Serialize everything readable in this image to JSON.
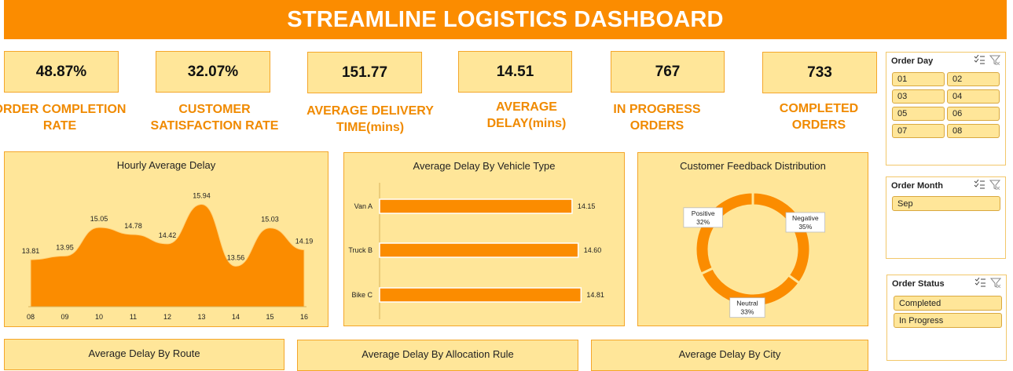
{
  "header": {
    "title": "STREAMLINE LOGISTICS DASHBOARD"
  },
  "kpis": [
    {
      "value": "48.87%",
      "label_line1": "ORDER COMPLETION",
      "label_line2": "RATE"
    },
    {
      "value": "32.07%",
      "label_line1": "CUSTOMER",
      "label_line2": "SATISFACTION RATE"
    },
    {
      "value": "151.77",
      "label_line1": "AVERAGE DELIVERY",
      "label_line2": "TIME(mins)"
    },
    {
      "value": "14.51",
      "label_line1": "AVERAGE",
      "label_line2": "DELAY(mins)"
    },
    {
      "value": "767",
      "label_line1": "IN PROGRESS",
      "label_line2": "ORDERS"
    },
    {
      "value": "733",
      "label_line1": "COMPLETED",
      "label_line2": "ORDERS"
    }
  ],
  "chart_data": [
    {
      "type": "area",
      "title": "Hourly Average Delay",
      "categories": [
        "08",
        "09",
        "10",
        "11",
        "12",
        "13",
        "14",
        "15",
        "16"
      ],
      "values": [
        13.81,
        13.95,
        15.05,
        14.78,
        14.42,
        15.94,
        13.56,
        15.03,
        14.19
      ],
      "data_labels": [
        "13.81",
        "13.95",
        "15.05",
        "14.78",
        "14.42",
        "15.94",
        "13.56",
        "15.03",
        "14.19"
      ],
      "color": "#fb8c00",
      "ylim": [
        12.0,
        16.5
      ]
    },
    {
      "type": "bar",
      "orientation": "horizontal",
      "title": "Average Delay By Vehicle Type",
      "categories": [
        "Van A",
        "Truck B",
        "Bike C"
      ],
      "values": [
        14.15,
        14.6,
        14.81
      ],
      "data_labels": [
        "14.15",
        "14.60",
        "14.81"
      ],
      "color": "#fb8c00",
      "xlim": [
        0,
        15.6
      ]
    },
    {
      "type": "pie",
      "variant": "donut",
      "title": "Customer Feedback Distribution",
      "categories": [
        "Negative",
        "Neutral",
        "Positive"
      ],
      "values": [
        35,
        33,
        32
      ],
      "data_labels": [
        {
          "name": "Negative",
          "pct": "35%"
        },
        {
          "name": "Neutral",
          "pct": "33%"
        },
        {
          "name": "Positive",
          "pct": "32%"
        }
      ],
      "color": "#fb8c00"
    }
  ],
  "bottom_panels": [
    {
      "title": "Average Delay By Route"
    },
    {
      "title": "Average Delay By Allocation Rule"
    },
    {
      "title": "Average Delay By City"
    }
  ],
  "slicers": {
    "order_day": {
      "title": "Order Day",
      "items": [
        "01",
        "02",
        "03",
        "04",
        "05",
        "06",
        "07",
        "08"
      ]
    },
    "order_month": {
      "title": "Order Month",
      "items": [
        "Sep"
      ]
    },
    "order_status": {
      "title": "Order Status",
      "items": [
        "Completed",
        "In Progress"
      ]
    },
    "icons": [
      "multi-select-icon",
      "clear-filter-icon"
    ]
  },
  "colors": {
    "accent": "#fb8c00",
    "panel": "#ffe699",
    "label": "#f08a00"
  }
}
